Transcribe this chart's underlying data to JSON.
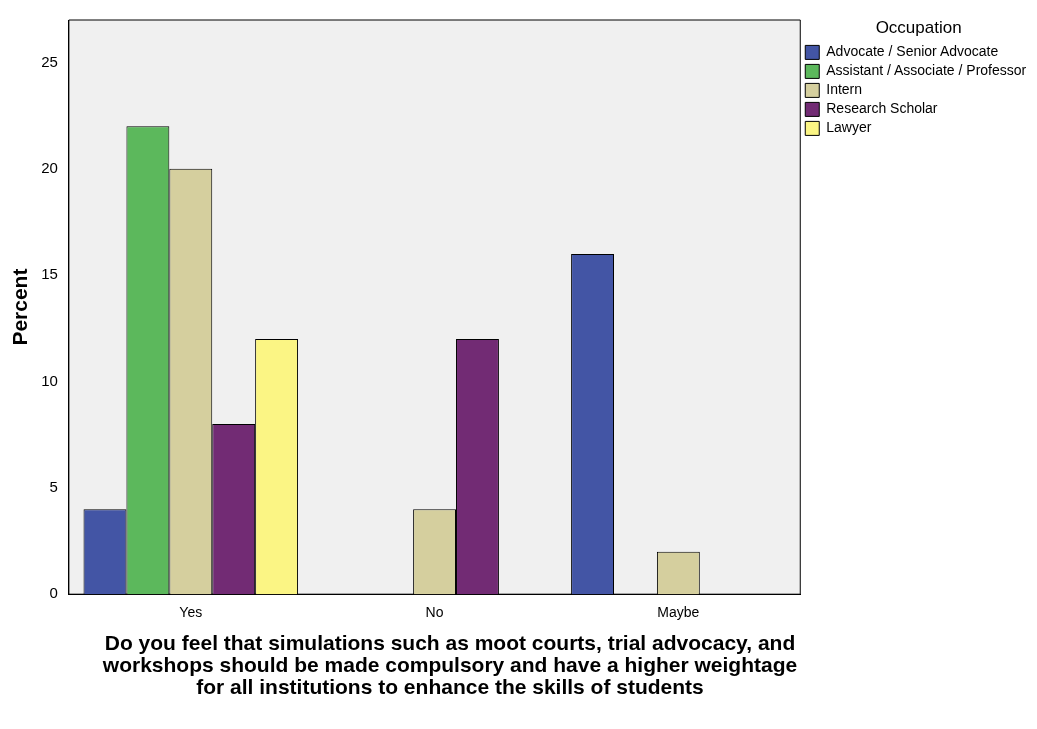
{
  "chart_data": {
    "type": "bar",
    "xlabel": "Do you feel that simulations such as moot courts, trial advocacy, and workshops should be made compulsory and have a higher weightage for all institutions to enhance the skills of students",
    "ylabel": "Percent",
    "legend_title": "Occupation",
    "categories": [
      "Yes",
      "No",
      "Maybe"
    ],
    "series": [
      {
        "name": "Advocate / Senior Advocate",
        "color": "#4355a5",
        "values": [
          4,
          0,
          16
        ]
      },
      {
        "name": "Assistant / Associate / Professor",
        "color": "#5cb85c",
        "values": [
          22,
          0,
          0
        ]
      },
      {
        "name": "Intern",
        "color": "#d5cf9e",
        "values": [
          20,
          4,
          2
        ]
      },
      {
        "name": "Research Scholar",
        "color": "#722b74",
        "values": [
          8,
          12,
          0
        ]
      },
      {
        "name": "Lawyer",
        "color": "#fbf584",
        "values": [
          12,
          0,
          0
        ]
      }
    ],
    "ylim": [
      0,
      27
    ],
    "yticks": [
      0,
      5,
      10,
      15,
      20,
      25
    ],
    "grid": false,
    "legend": "top right"
  }
}
